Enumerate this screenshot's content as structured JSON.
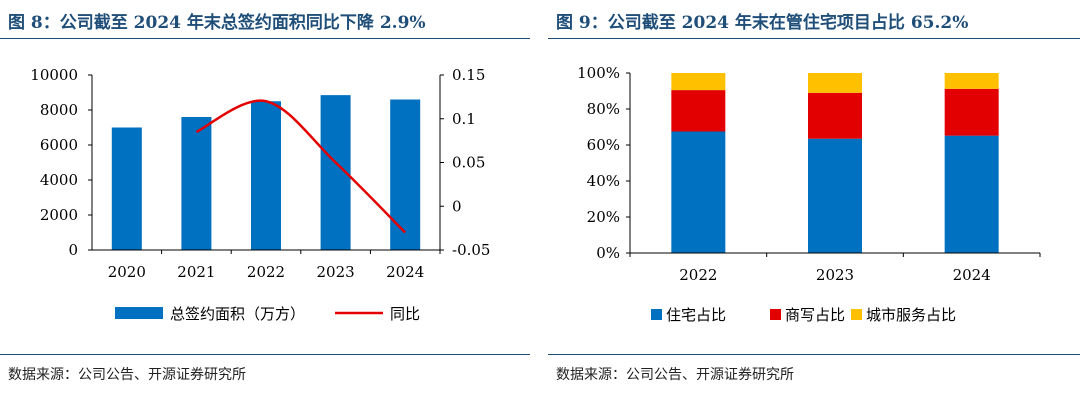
{
  "left": {
    "figure_title": "图 8：公司截至 2024 年末总签约面积同比下降 2.9%",
    "source": "数据来源：公司公告、开源证券研究所"
  },
  "right": {
    "figure_title": "图 9：公司截至 2024 年末在管住宅项目占比 65.2%",
    "source": "数据来源：公司公告、开源证券研究所"
  },
  "colors": {
    "blue": "#0070c0",
    "red": "#e30000",
    "yellow": "#ffc000",
    "title": "#1f4e79"
  },
  "chart_data": [
    {
      "type": "bar",
      "title": "",
      "categories": [
        "2020",
        "2021",
        "2022",
        "2023",
        "2024"
      ],
      "series": [
        {
          "name": "总签约面积（万方）",
          "type": "bar",
          "axis": "left",
          "values": [
            7000,
            7600,
            8500,
            8850,
            8600
          ]
        },
        {
          "name": "同比",
          "type": "line",
          "axis": "right",
          "values": [
            null,
            0.085,
            0.12,
            0.05,
            -0.03
          ]
        }
      ],
      "y_left": {
        "ylim": [
          0,
          10000
        ],
        "ticks": [
          "0",
          "2000",
          "4000",
          "6000",
          "8000",
          "10000"
        ]
      },
      "y_right": {
        "ylim": [
          -0.05,
          0.15
        ],
        "ticks": [
          "-0.05",
          "0",
          "0.05",
          "0.1",
          "0.15"
        ]
      },
      "grid": false,
      "legend_position": "bottom"
    },
    {
      "type": "bar",
      "stacked": true,
      "title": "",
      "categories": [
        "2022",
        "2023",
        "2024"
      ],
      "series": [
        {
          "name": "住宅占比",
          "values": [
            67.5,
            63.5,
            65.2
          ]
        },
        {
          "name": "商写占比",
          "values": [
            23.0,
            25.5,
            26.0
          ]
        },
        {
          "name": "城市服务占比",
          "values": [
            9.5,
            11.0,
            8.8
          ]
        }
      ],
      "ylim": [
        0,
        100
      ],
      "y_ticks": [
        "0%",
        "20%",
        "40%",
        "60%",
        "80%",
        "100%"
      ],
      "grid": false,
      "legend_position": "bottom"
    }
  ]
}
